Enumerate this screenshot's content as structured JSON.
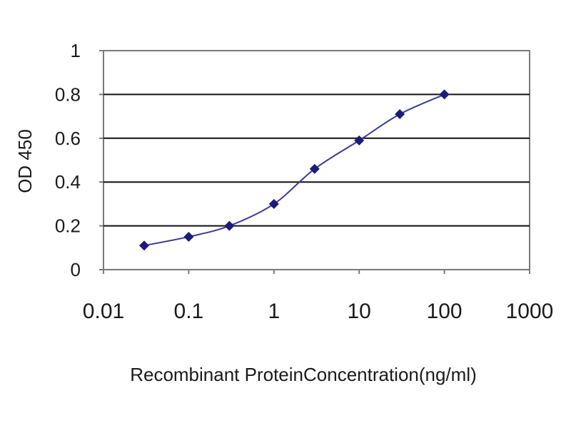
{
  "chart_data": {
    "type": "line",
    "xscale": "log",
    "xlabel": "Recombinant ProteinConcentration(ng/ml)",
    "ylabel": "OD 450",
    "xlim": [
      0.01,
      1000
    ],
    "ylim": [
      0,
      1
    ],
    "x_ticks": [
      "0.01",
      "0.1",
      "1",
      "10",
      "100",
      "1000"
    ],
    "y_ticks": [
      "0",
      "0.2",
      "0.4",
      "0.6",
      "0.8",
      "1"
    ],
    "grid": "horizontal",
    "series": [
      {
        "x": [
          0.03,
          0.1,
          0.3,
          1,
          3,
          10,
          30,
          100
        ],
        "y": [
          0.11,
          0.15,
          0.2,
          0.3,
          0.46,
          0.59,
          0.71,
          0.8
        ]
      }
    ],
    "colors": {
      "line": "#3a3a9a",
      "marker": "#1c1c78",
      "grid": "#111111",
      "frame": "#7a7a7a"
    }
  }
}
